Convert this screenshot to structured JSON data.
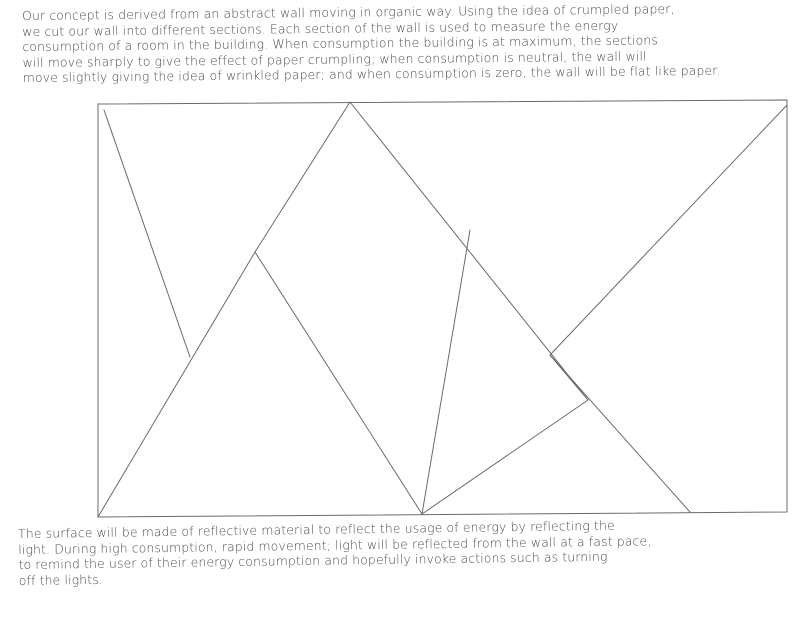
{
  "intro": {
    "lines": [
      "Our concept is derived from an abstract wall moving in organic way. Using the idea of crumpled paper,",
      "we cut our wall into different sections. Each section of the wall is used to measure the energy",
      "consumption of a room in the building. When consumption the building is at maximum, the sections",
      "will move sharply to give the effect of paper crumpling; when consumption is neutral, the wall will",
      "move slightly giving the idea of wrinkled paper; and when consumption is zero, the wall will be flat like paper."
    ]
  },
  "outro": {
    "lines": [
      "The surface will be made of reflective material to reflect the usage of energy by reflecting the",
      "light. During high consumption, rapid movement; light will be reflected from the wall at a fast pace,",
      "to remind the user of their energy consumption and hopefully invoke actions such as turning",
      "off the lights."
    ]
  }
}
